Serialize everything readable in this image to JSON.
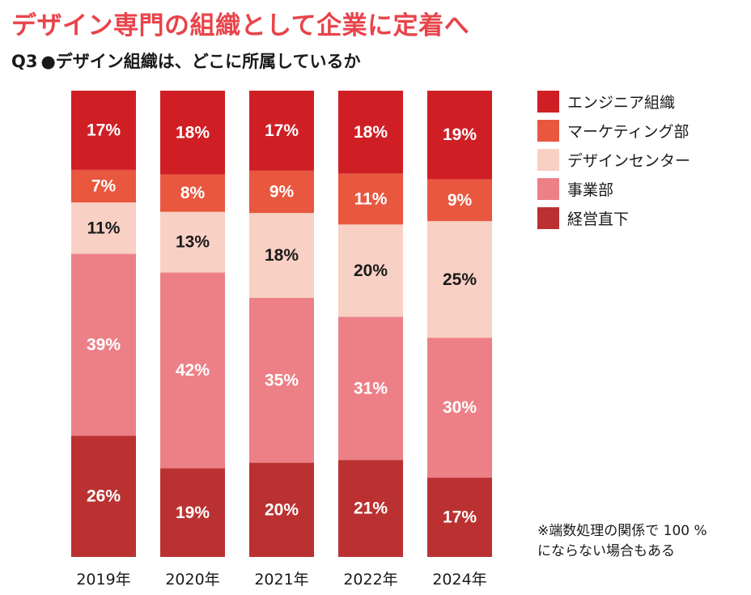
{
  "header": {
    "title": "デザイン専門の組織として企業に定着へ",
    "question_label": "Q3",
    "bullet": "●",
    "question_text": "デザイン組織は、どこに所属しているか"
  },
  "note": {
    "line1": "※端数処理の関係で 100 %",
    "line2": "にならない場合もある"
  },
  "chart_data": {
    "type": "bar",
    "stacked": true,
    "orientation": "vertical",
    "value_unit": "%",
    "categories": [
      "2019年",
      "2020年",
      "2021年",
      "2022年",
      "2024年"
    ],
    "series": [
      {
        "name": "エンジニア組織",
        "color": "#cf1f25",
        "text_color": "#ffffff",
        "values": [
          17,
          18,
          17,
          18,
          19
        ]
      },
      {
        "name": "マーケティング部",
        "color": "#e9573f",
        "text_color": "#ffffff",
        "values": [
          7,
          8,
          9,
          11,
          9
        ]
      },
      {
        "name": "デザインセンター",
        "color": "#f8d0c4",
        "text_color": "#1a1a1a",
        "values": [
          11,
          13,
          18,
          20,
          25
        ]
      },
      {
        "name": "事業部",
        "color": "#ec8086",
        "text_color": "#ffffff",
        "values": [
          39,
          42,
          35,
          31,
          30
        ]
      },
      {
        "name": "経営直下",
        "color": "#bb3131",
        "text_color": "#ffffff",
        "values": [
          26,
          19,
          20,
          21,
          17
        ]
      }
    ],
    "legend_position": "right",
    "grid": false,
    "data_labels": true
  }
}
